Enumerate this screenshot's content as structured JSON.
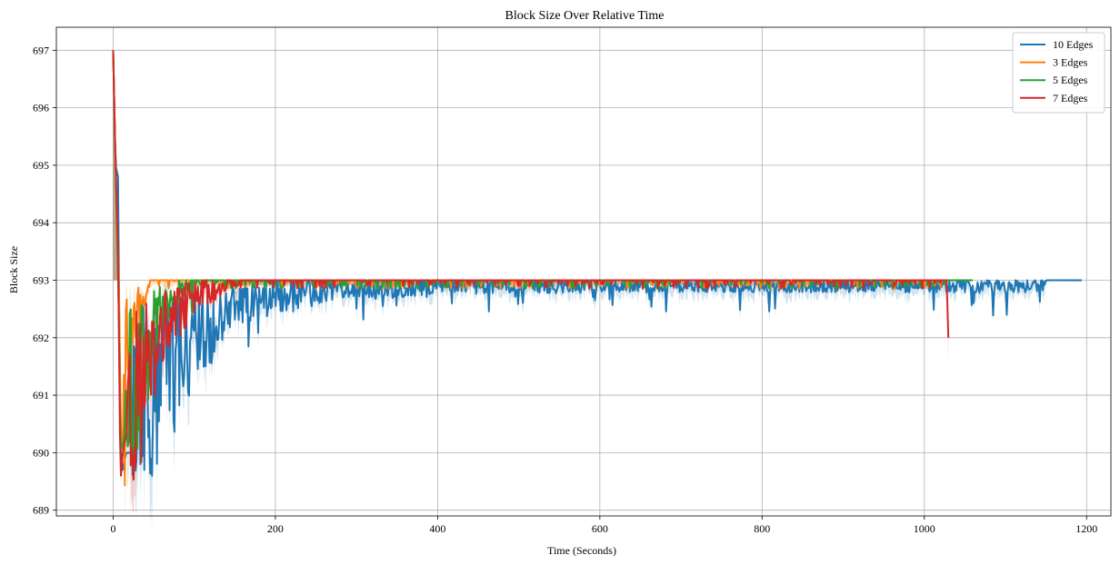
{
  "chart_data": {
    "type": "line",
    "title": "Block Size Over Relative Time",
    "xlabel": "Time (Seconds)",
    "ylabel": "Block Size",
    "xlim": [
      -70,
      1230
    ],
    "ylim": [
      688.9,
      697.4
    ],
    "xticks": [
      0,
      200,
      400,
      600,
      800,
      1000,
      1200
    ],
    "yticks": [
      689,
      690,
      691,
      692,
      693,
      694,
      695,
      696,
      697
    ],
    "grid": true,
    "legend_position": "top-right",
    "series": [
      {
        "name": "10 Edges",
        "color": "#1f77b4",
        "end": 1195,
        "noise_end": 1148,
        "points": [
          [
            0,
            697
          ],
          [
            3,
            695
          ],
          [
            6,
            694.8
          ],
          [
            9,
            690
          ],
          [
            12,
            689.7
          ],
          [
            16,
            690
          ],
          [
            22,
            690
          ],
          [
            25,
            691
          ],
          [
            40,
            691
          ],
          [
            60,
            691.2
          ],
          [
            80,
            691.6
          ],
          [
            100,
            692
          ],
          [
            120,
            692.2
          ],
          [
            140,
            692.5
          ],
          [
            160,
            692.6
          ],
          [
            200,
            692.7
          ],
          [
            250,
            692.8
          ],
          [
            300,
            692.85
          ],
          [
            350,
            692.85
          ],
          [
            400,
            692.9
          ],
          [
            500,
            692.9
          ],
          [
            1148,
            692.9
          ],
          [
            1150,
            693
          ],
          [
            1195,
            693
          ]
        ]
      },
      {
        "name": "3 Edges",
        "color": "#ff7f0e",
        "end": 1032,
        "noise_end": 1032,
        "points": [
          [
            0,
            697
          ],
          [
            3,
            695
          ],
          [
            7,
            693
          ],
          [
            10,
            690
          ],
          [
            13,
            690.5
          ],
          [
            16,
            691.5
          ],
          [
            20,
            691.5
          ],
          [
            25,
            692
          ],
          [
            30,
            692.5
          ],
          [
            40,
            692.8
          ],
          [
            45,
            693
          ],
          [
            100,
            693
          ],
          [
            1032,
            693
          ]
        ]
      },
      {
        "name": "5 Edges",
        "color": "#2ca02c",
        "end": 1060,
        "noise_end": 1030,
        "points": [
          [
            0,
            697
          ],
          [
            3,
            695
          ],
          [
            7,
            692.5
          ],
          [
            9,
            690
          ],
          [
            13,
            690.2
          ],
          [
            16,
            690.8
          ],
          [
            20,
            691.3
          ],
          [
            30,
            691.3
          ],
          [
            40,
            691.8
          ],
          [
            50,
            692.3
          ],
          [
            60,
            692.5
          ],
          [
            80,
            692.8
          ],
          [
            100,
            693
          ],
          [
            1060,
            693
          ]
        ]
      },
      {
        "name": "7 Edges",
        "color": "#d62728",
        "end": 1030,
        "noise_end": 1025,
        "points": [
          [
            0,
            697
          ],
          [
            3,
            695
          ],
          [
            6,
            693.5
          ],
          [
            9,
            689.5
          ],
          [
            12,
            690
          ],
          [
            16,
            690.3
          ],
          [
            22,
            691
          ],
          [
            30,
            691.1
          ],
          [
            40,
            691.3
          ],
          [
            50,
            691.8
          ],
          [
            60,
            692.2
          ],
          [
            80,
            692.5
          ],
          [
            100,
            692.7
          ],
          [
            120,
            692.8
          ],
          [
            140,
            692.9
          ],
          [
            160,
            693
          ],
          [
            1028,
            693
          ],
          [
            1029,
            692
          ],
          [
            1030,
            692
          ]
        ]
      }
    ]
  }
}
